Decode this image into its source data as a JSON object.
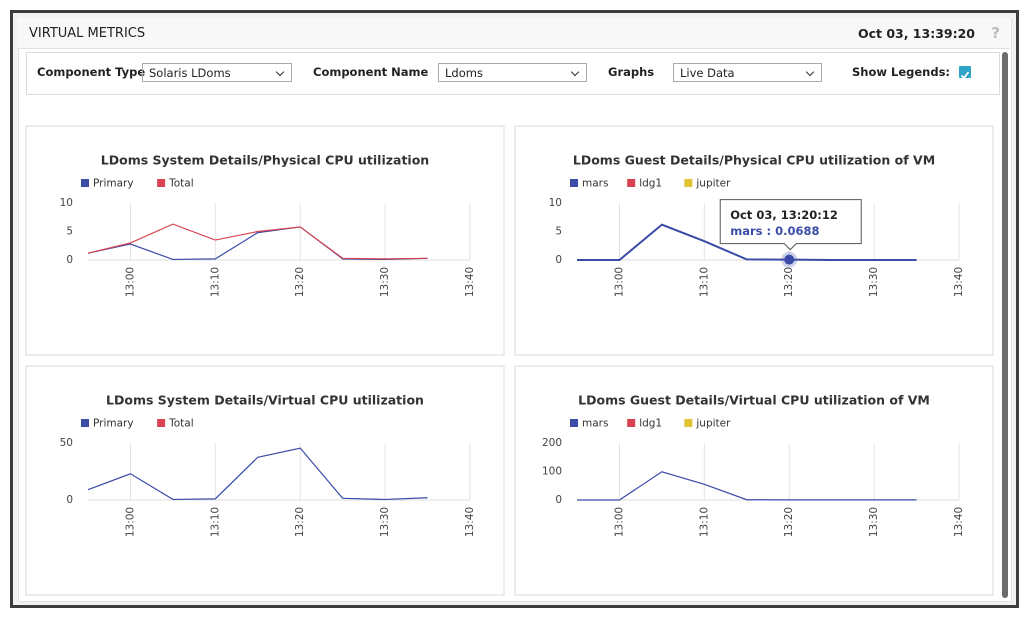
{
  "header": {
    "title": "VIRTUAL METRICS",
    "timestamp": "Oct 03, 13:39:20",
    "help": "?"
  },
  "filters": [
    {
      "label": "Component Type",
      "value": "Solaris LDoms"
    },
    {
      "label": "Component Name",
      "value": "Ldoms"
    },
    {
      "label": "Graphs",
      "value": "Live Data"
    }
  ],
  "show_legends": {
    "label": "Show Legends:",
    "checked": true
  },
  "chart_data": [
    {
      "type": "line",
      "title": "LDoms System Details/Physical CPU utilization",
      "x": [
        "12:55",
        "13:00",
        "13:05",
        "13:10",
        "13:15",
        "13:20",
        "13:25",
        "13:30",
        "13:35"
      ],
      "series": [
        {
          "name": "Primary",
          "color": "#3b4ba8",
          "values": [
            1.2,
            2.8,
            0.1,
            0.2,
            4.8,
            5.8,
            0.2,
            0.1,
            0.3
          ]
        },
        {
          "name": "Total",
          "color": "#d9434f",
          "values": [
            1.2,
            3.0,
            6.3,
            3.5,
            5.0,
            5.8,
            0.3,
            0.2,
            0.3
          ]
        }
      ],
      "xlim": [
        "12:55",
        "13:40"
      ],
      "xticks": [
        "13:00",
        "13:10",
        "13:20",
        "13:30",
        "13:40"
      ],
      "ylim": [
        0,
        10
      ],
      "yticks": [
        0,
        5,
        10
      ],
      "grid": "x"
    },
    {
      "type": "line",
      "title": "LDoms Guest Details/Physical CPU utilization of VM",
      "x": [
        "12:55",
        "13:00",
        "13:05",
        "13:10",
        "13:15",
        "13:20",
        "13:25",
        "13:30",
        "13:35"
      ],
      "series": [
        {
          "name": "mars",
          "color": "#3b4ba8",
          "values": [
            0,
            0,
            6.2,
            3.3,
            0.1,
            0.0688,
            0,
            0,
            0
          ]
        },
        {
          "name": "ldg1",
          "color": "#d9434f",
          "values": [
            null,
            null,
            null,
            null,
            null,
            null,
            null,
            null,
            null
          ]
        },
        {
          "name": "jupiter",
          "color": "#e0c234",
          "values": [
            null,
            null,
            null,
            null,
            null,
            null,
            null,
            null,
            null
          ]
        }
      ],
      "xlim": [
        "12:55",
        "13:40"
      ],
      "xticks": [
        "13:00",
        "13:10",
        "13:20",
        "13:30",
        "13:40"
      ],
      "ylim": [
        0,
        10
      ],
      "yticks": [
        0,
        5,
        10
      ],
      "grid": "x",
      "tooltip": {
        "title": "Oct 03, 13:20:12",
        "text": "mars : 0.0688",
        "series": 0,
        "point": 5
      }
    },
    {
      "type": "line",
      "title": "LDoms System Details/Virtual CPU utilization",
      "x": [
        "12:55",
        "13:00",
        "13:05",
        "13:10",
        "13:15",
        "13:20",
        "13:25",
        "13:30",
        "13:35"
      ],
      "series": [
        {
          "name": "Primary",
          "color": "#3b4ba8",
          "values": [
            9,
            23,
            0.5,
            1,
            37.5,
            45.5,
            1.5,
            0.5,
            2
          ]
        },
        {
          "name": "Total",
          "color": "#d9434f",
          "values": [
            null,
            null,
            null,
            null,
            null,
            null,
            null,
            null,
            null
          ]
        }
      ],
      "xlim": [
        "12:55",
        "13:40"
      ],
      "xticks": [
        "13:00",
        "13:10",
        "13:20",
        "13:30",
        "13:40"
      ],
      "ylim": [
        0,
        50
      ],
      "yticks": [
        0,
        50
      ],
      "grid": "x"
    },
    {
      "type": "line",
      "title": "LDoms Guest Details/Virtual CPU utilization of VM",
      "x": [
        "12:55",
        "13:00",
        "13:05",
        "13:10",
        "13:15",
        "13:20",
        "13:25",
        "13:30",
        "13:35"
      ],
      "series": [
        {
          "name": "mars",
          "color": "#3b4ba8",
          "values": [
            0,
            0,
            99,
            55,
            1,
            0.5,
            0.5,
            0.5,
            0.5
          ]
        },
        {
          "name": "ldg1",
          "color": "#d9434f",
          "values": [
            null,
            null,
            null,
            null,
            null,
            null,
            null,
            null,
            null
          ]
        },
        {
          "name": "jupiter",
          "color": "#e0c234",
          "values": [
            null,
            null,
            null,
            null,
            null,
            null,
            null,
            null,
            null
          ]
        }
      ],
      "xlim": [
        "12:55",
        "13:40"
      ],
      "xticks": [
        "13:00",
        "13:10",
        "13:20",
        "13:30",
        "13:40"
      ],
      "ylim": [
        0,
        200
      ],
      "yticks": [
        0,
        100,
        200
      ],
      "grid": "x"
    }
  ]
}
